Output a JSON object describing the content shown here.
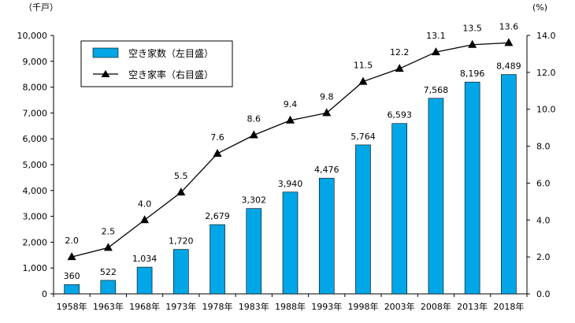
{
  "chart_data": {
    "type": "bar+line",
    "categories": [
      "1958年",
      "1963年",
      "1968年",
      "1973年",
      "1978年",
      "1983年",
      "1988年",
      "1993年",
      "1998年",
      "2003年",
      "2008年",
      "2013年",
      "2018年"
    ],
    "left_axis": {
      "unit_label": "（千戸）",
      "ylim": [
        0,
        10000
      ],
      "ticks": [
        0,
        1000,
        2000,
        3000,
        4000,
        5000,
        6000,
        7000,
        8000,
        9000,
        10000
      ],
      "tick_labels": [
        "0",
        "1,000",
        "2,000",
        "3,000",
        "4,000",
        "5,000",
        "6,000",
        "7,000",
        "8,000",
        "9,000",
        "10,000"
      ]
    },
    "right_axis": {
      "unit_label": "(%)",
      "ylim": [
        0,
        14
      ],
      "ticks": [
        0,
        2,
        4,
        6,
        8,
        10,
        12,
        14
      ],
      "tick_labels": [
        "0.0",
        "2.0",
        "4.0",
        "6.0",
        "8.0",
        "10.0",
        "12.0",
        "14.0"
      ]
    },
    "series": [
      {
        "name": "空き家数（左目盛）",
        "type": "bar",
        "axis": "left",
        "color": "#00A6E6",
        "values": [
          360,
          522,
          1034,
          1720,
          2679,
          3302,
          3940,
          4476,
          5764,
          6593,
          7568,
          8196,
          8489
        ],
        "labels": [
          "360",
          "522",
          "1,034",
          "1,720",
          "2,679",
          "3,302",
          "3,940",
          "4,476",
          "5,764",
          "6,593",
          "7,568",
          "8,196",
          "8,489"
        ]
      },
      {
        "name": "空き家率（右目盛）",
        "type": "line",
        "axis": "right",
        "color": "#000000",
        "marker": "triangle",
        "values": [
          2.0,
          2.5,
          4.0,
          5.5,
          7.6,
          8.6,
          9.4,
          9.8,
          11.5,
          12.2,
          13.1,
          13.5,
          13.6
        ],
        "labels": [
          "2.0",
          "2.5",
          "4.0",
          "5.5",
          "7.6",
          "8.6",
          "9.4",
          "9.8",
          "11.5",
          "12.2",
          "13.1",
          "13.5",
          "13.6"
        ]
      }
    ],
    "legend": {
      "placement": "top-left"
    }
  }
}
